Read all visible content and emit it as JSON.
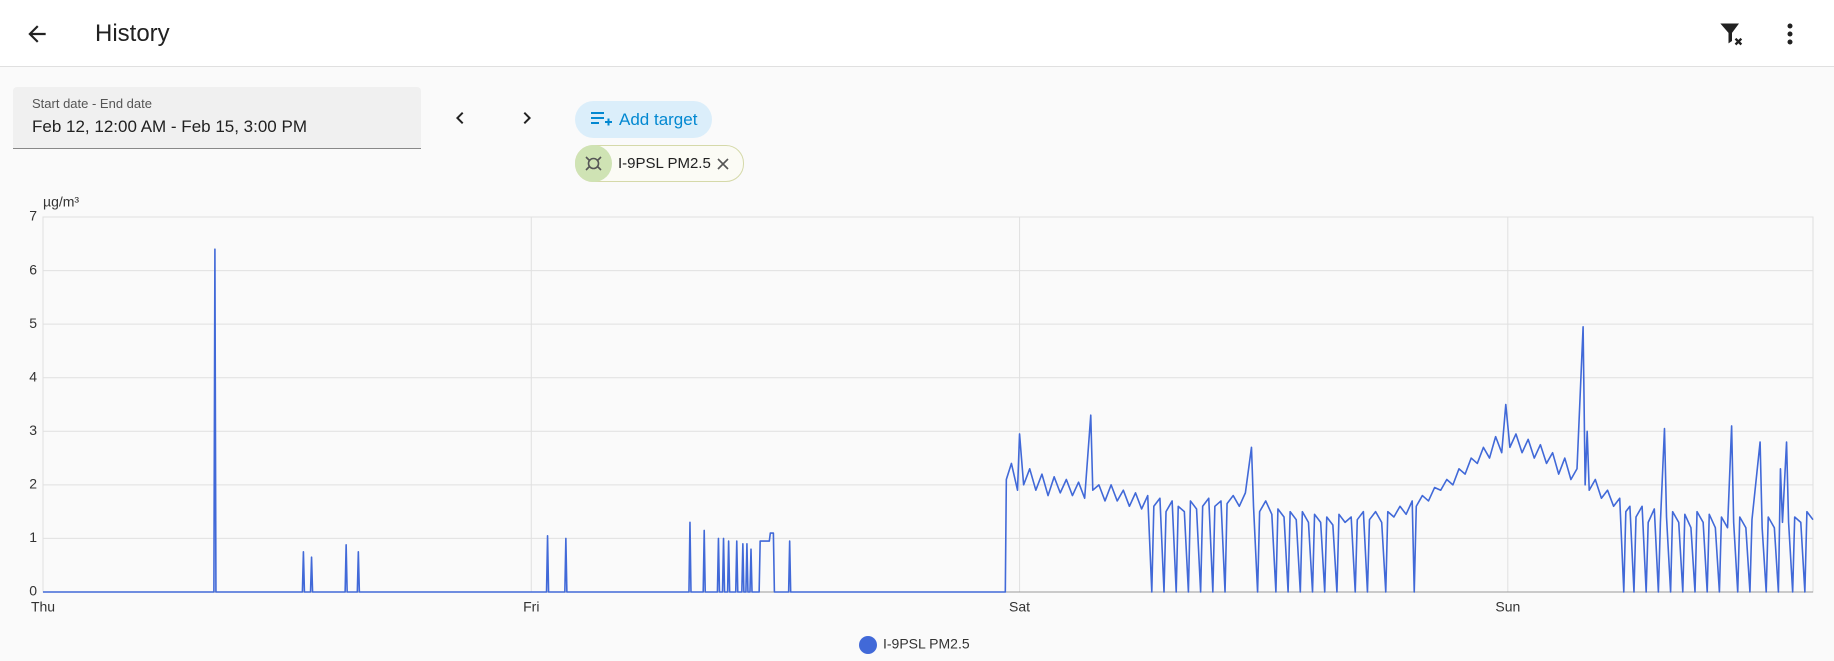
{
  "header": {
    "title": "History"
  },
  "date_picker": {
    "label": "Start date - End date",
    "value": "Feb 12, 12:00 AM - Feb 15, 3:00 PM"
  },
  "add_target": {
    "label": "Add target"
  },
  "chips": [
    {
      "label": "I-9PSL PM2.5"
    }
  ],
  "chart_data": {
    "type": "line",
    "y_label": "µg/m³",
    "x": [
      0,
      8.4,
      8.45,
      8.5,
      12.75,
      12.8,
      12.85,
      13.15,
      13.2,
      13.25,
      14.85,
      14.9,
      14.95,
      15.45,
      15.5,
      15.55,
      24.75,
      24.8,
      24.85,
      25.65,
      25.7,
      25.75,
      31.75,
      31.8,
      31.85,
      32.45,
      32.5,
      32.55,
      33.15,
      33.2,
      33.25,
      33.4,
      33.45,
      33.5,
      33.65,
      33.7,
      33.75,
      34.05,
      34.1,
      34.15,
      34.35,
      34.4,
      34.45,
      34.55,
      34.6,
      34.65,
      34.75,
      34.8,
      34.85,
      35.2,
      35.25,
      35.7,
      35.75,
      35.9,
      35.95,
      36.65,
      36.7,
      36.75,
      47.3,
      47.35,
      47.6,
      47.9,
      48,
      48.2,
      48.5,
      48.8,
      49.1,
      49.4,
      49.7,
      50,
      50.3,
      50.6,
      50.9,
      51.2,
      51.5,
      51.6,
      51.9,
      52.2,
      52.5,
      52.8,
      53.1,
      53.4,
      53.7,
      54,
      54.3,
      54.5,
      54.6,
      54.9,
      55.1,
      55.2,
      55.5,
      55.7,
      55.8,
      56.1,
      56.3,
      56.4,
      56.7,
      56.9,
      57,
      57.3,
      57.5,
      57.6,
      57.9,
      58.1,
      58.2,
      58.5,
      58.8,
      59.1,
      59.4,
      59.5,
      59.7,
      59.8,
      60.1,
      60.4,
      60.6,
      60.7,
      61,
      61.2,
      61.3,
      61.6,
      61.8,
      61.9,
      62.2,
      62.4,
      62.5,
      62.8,
      63,
      63.1,
      63.4,
      63.6,
      63.7,
      64,
      64.3,
      64.5,
      64.6,
      64.9,
      65.1,
      65.2,
      65.5,
      65.8,
      66,
      66.1,
      66.4,
      66.7,
      67,
      67.3,
      67.4,
      67.5,
      67.8,
      68.1,
      68.4,
      68.7,
      69,
      69.3,
      69.6,
      69.9,
      70.2,
      70.5,
      70.8,
      71.1,
      71.4,
      71.7,
      71.9,
      72.1,
      72.4,
      72.7,
      73,
      73.3,
      73.6,
      73.9,
      74.2,
      74.5,
      74.8,
      75.1,
      75.4,
      75.7,
      75.8,
      75.9,
      76,
      76.3,
      76.6,
      76.9,
      77.2,
      77.5,
      77.7,
      77.8,
      78,
      78.2,
      78.3,
      78.6,
      78.8,
      78.9,
      79.2,
      79.4,
      79.5,
      79.7,
      79.8,
      80,
      80.1,
      80.4,
      80.6,
      80.7,
      81,
      81.2,
      81.3,
      81.6,
      81.8,
      81.9,
      82.2,
      82.4,
      82.5,
      82.8,
      83,
      83.1,
      83.3,
      83.4,
      83.7,
      83.9,
      84,
      84.4,
      84.5,
      84.7,
      84.8,
      85.1,
      85.3,
      85.4,
      85.5,
      85.7,
      85.8,
      86,
      86.1,
      86.4,
      86.6,
      86.7,
      87
    ],
    "series": [
      {
        "name": "I-9PSL PM2.5",
        "color": "#4169d8",
        "values": [
          0,
          0,
          6.4,
          0,
          0,
          0.75,
          0,
          0,
          0.65,
          0,
          0,
          0.88,
          0,
          0,
          0.75,
          0,
          0,
          1.05,
          0,
          0,
          1,
          0,
          0,
          1.3,
          0,
          0,
          1.15,
          0,
          0,
          1,
          0,
          0,
          1,
          0,
          0,
          0.95,
          0,
          0,
          0.95,
          0,
          0,
          0.9,
          0,
          0,
          0.9,
          0,
          0,
          0.8,
          0,
          0,
          0.95,
          0.95,
          1.1,
          1.1,
          0,
          0,
          0.95,
          0,
          0,
          2.1,
          2.4,
          1.9,
          2.95,
          2,
          2.3,
          1.9,
          2.2,
          1.8,
          2.15,
          1.85,
          2.1,
          1.8,
          2.05,
          1.75,
          3.3,
          1.9,
          2,
          1.7,
          2,
          1.7,
          1.9,
          1.6,
          1.85,
          1.55,
          1.8,
          0,
          1.6,
          1.75,
          0,
          1.5,
          1.7,
          0,
          1.6,
          1.5,
          0,
          1.7,
          1.55,
          0,
          1.6,
          1.75,
          0,
          1.6,
          1.7,
          0,
          1.65,
          1.8,
          1.6,
          1.85,
          2.7,
          1.6,
          0,
          1.5,
          1.7,
          1.45,
          0,
          1.55,
          1.4,
          0,
          1.5,
          1.35,
          0,
          1.5,
          1.3,
          0,
          1.45,
          1.3,
          0,
          1.4,
          1.25,
          0,
          1.45,
          1.3,
          1.4,
          0,
          1.35,
          1.5,
          0,
          1.35,
          1.5,
          1.3,
          0,
          1.5,
          1.4,
          1.6,
          1.45,
          1.7,
          0,
          1.6,
          1.8,
          1.7,
          1.95,
          1.9,
          2.1,
          2,
          2.3,
          2.2,
          2.5,
          2.4,
          2.7,
          2.5,
          2.9,
          2.6,
          3.5,
          2.7,
          2.95,
          2.6,
          2.85,
          2.5,
          2.75,
          2.4,
          2.6,
          2.2,
          2.5,
          2.1,
          2.3,
          4.95,
          2,
          3,
          1.9,
          2.1,
          1.75,
          1.9,
          1.6,
          1.75,
          0,
          1.5,
          1.6,
          0,
          1.4,
          1.6,
          0,
          1.3,
          1.55,
          0,
          1.3,
          3.05,
          1.4,
          0,
          1.5,
          1.3,
          0,
          1.45,
          1.2,
          0,
          1.5,
          1.3,
          0,
          1.45,
          1.2,
          0,
          1.4,
          1.2,
          3.1,
          1.3,
          0,
          1.4,
          1.2,
          0,
          1.35,
          2.8,
          1.2,
          0,
          1.4,
          1.2,
          0,
          2.3,
          1.3,
          2.8,
          1.3,
          0,
          1.4,
          1.3,
          0,
          1.5,
          1.35
        ]
      }
    ],
    "xlim": [
      0,
      87
    ],
    "xticks": [
      {
        "value": 0,
        "label": "Thu"
      },
      {
        "value": 24,
        "label": "Fri"
      },
      {
        "value": 48,
        "label": "Sat"
      },
      {
        "value": 72,
        "label": "Sun"
      }
    ],
    "ylim": [
      0,
      7
    ],
    "yticks": [
      0,
      1,
      2,
      3,
      4,
      5,
      6,
      7
    ],
    "grid": true,
    "legend": "bottom"
  }
}
